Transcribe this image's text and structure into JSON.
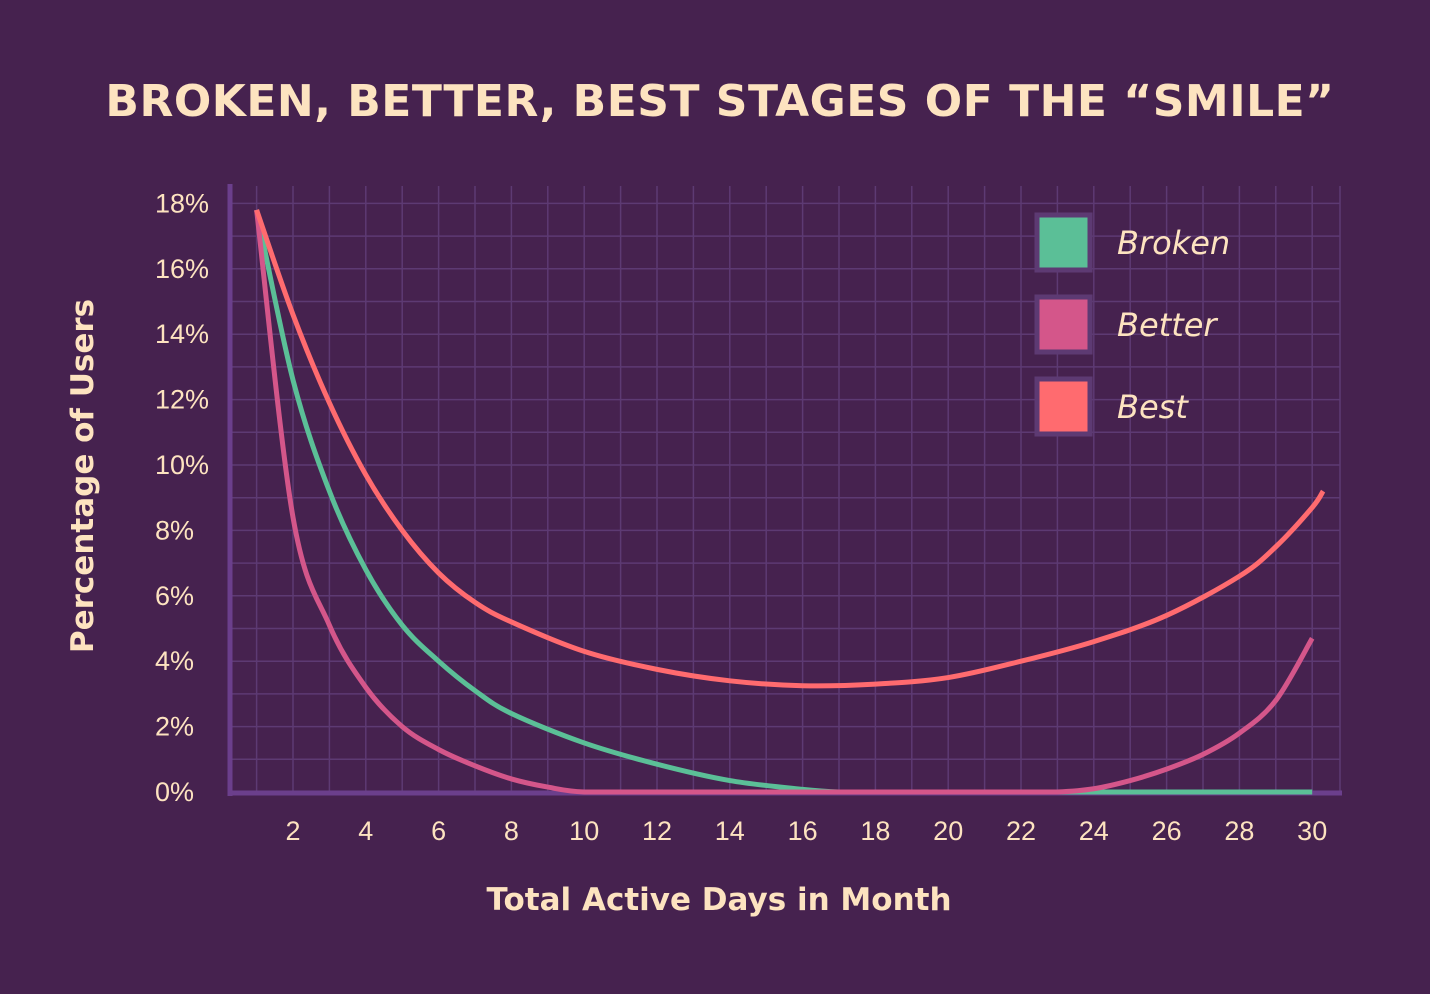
{
  "chart_data": {
    "type": "line",
    "title": "BROKEN, BETTER, BEST STAGES OF THE “SMILE”",
    "xlabel": "Total Active Days in Month",
    "ylabel": "Percentage of Users",
    "xlim": [
      0.3,
      31.2
    ],
    "ylim": [
      0,
      18
    ],
    "xticks": [
      2,
      4,
      6,
      8,
      10,
      12,
      14,
      16,
      18,
      20,
      22,
      24,
      26,
      28,
      30
    ],
    "yticks": [
      "0%",
      "2%",
      "4%",
      "6%",
      "8%",
      "10%",
      "12%",
      "14%",
      "16%",
      "18%"
    ],
    "grid": true,
    "legend_position": "top-right",
    "colors": {
      "background": "#46224f",
      "grid": "#5d3a73",
      "axis": "#6b3f8c",
      "text": "#fde3c0"
    },
    "series": [
      {
        "name": "Broken",
        "color": "#5bbf97",
        "x": [
          1,
          2,
          3,
          4,
          5,
          6,
          7,
          8,
          10,
          12,
          14,
          16,
          17,
          18,
          20,
          22,
          24,
          26,
          28,
          30
        ],
        "y": [
          17.8,
          12.6,
          9.2,
          6.8,
          5.1,
          4.0,
          3.1,
          2.4,
          1.5,
          0.85,
          0.35,
          0.08,
          0,
          0,
          0,
          0,
          0,
          0,
          0,
          0
        ]
      },
      {
        "name": "Better",
        "color": "#d4568a",
        "x": [
          1,
          2,
          3,
          4,
          5,
          6,
          7,
          8,
          9,
          10,
          12,
          14,
          16,
          18,
          20,
          22,
          23,
          24,
          25,
          26,
          27,
          28,
          29,
          30
        ],
        "y": [
          17.8,
          8.4,
          5.1,
          3.2,
          2.0,
          1.3,
          0.8,
          0.4,
          0.15,
          0,
          0,
          0,
          0,
          0,
          0,
          0,
          0,
          0.1,
          0.35,
          0.7,
          1.15,
          1.8,
          2.8,
          4.7
        ]
      },
      {
        "name": "Best",
        "color": "#ff6b6f",
        "x": [
          1,
          2,
          3,
          4,
          5,
          6,
          7,
          8,
          10,
          12,
          14,
          16,
          18,
          20,
          22,
          24,
          26,
          28,
          29,
          30,
          30.3
        ],
        "y": [
          17.8,
          14.6,
          11.9,
          9.7,
          8.0,
          6.7,
          5.8,
          5.2,
          4.3,
          3.75,
          3.4,
          3.25,
          3.3,
          3.5,
          4.0,
          4.6,
          5.4,
          6.6,
          7.5,
          8.7,
          9.2
        ]
      }
    ]
  }
}
